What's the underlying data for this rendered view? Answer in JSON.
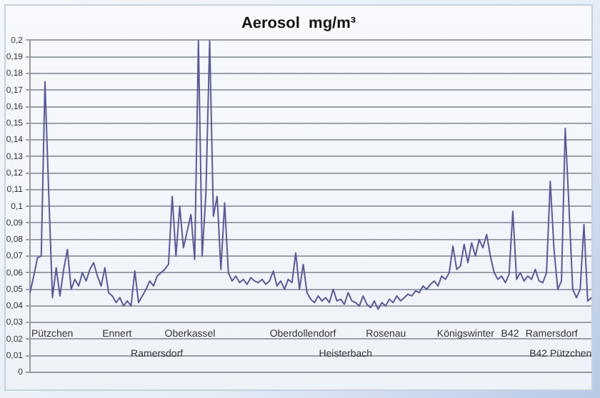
{
  "chart_data": {
    "type": "line",
    "title": "Aerosol  mg/m³",
    "categories": [
      null,
      null,
      null,
      null,
      null,
      null,
      null,
      null,
      null,
      null,
      null,
      null,
      null,
      null,
      null,
      null,
      null,
      null,
      null,
      null,
      null,
      null,
      null,
      null,
      null,
      null,
      null,
      null,
      null,
      null,
      null,
      null,
      null,
      null,
      null,
      null,
      null,
      null,
      null,
      null,
      null,
      null,
      null,
      null,
      null,
      null,
      null,
      null,
      null,
      null,
      null,
      null,
      null,
      null,
      null,
      null,
      null,
      null,
      null,
      null,
      null,
      null,
      null,
      null,
      null,
      null,
      null,
      null,
      null,
      null,
      null,
      null,
      null,
      null,
      null,
      null,
      null,
      null,
      null,
      null,
      null,
      null,
      null,
      null,
      null,
      null,
      null,
      null,
      null,
      null,
      null,
      null,
      null,
      null,
      null,
      null,
      null,
      null,
      null,
      null,
      null,
      null,
      null,
      null,
      null,
      null,
      null,
      null,
      null,
      null,
      null,
      null,
      null,
      null,
      null,
      null,
      null,
      null,
      null,
      null,
      null,
      null,
      null,
      null,
      null,
      null,
      null,
      null,
      null,
      null,
      null,
      null,
      null,
      null,
      null,
      null,
      null,
      null,
      null,
      null,
      null,
      null,
      null,
      null,
      null,
      null,
      null,
      null,
      null,
      null,
      null
    ],
    "series": [
      {
        "color": "#5a5a96",
        "values": [
          0.048,
          0.058,
          0.069,
          0.07,
          0.175,
          0.108,
          0.045,
          0.063,
          0.046,
          0.062,
          0.074,
          0.05,
          0.056,
          0.052,
          0.06,
          0.055,
          0.062,
          0.066,
          0.058,
          0.052,
          0.063,
          0.048,
          0.046,
          0.042,
          0.045,
          0.04,
          0.043,
          0.04,
          0.061,
          0.042,
          0.046,
          0.05,
          0.055,
          0.052,
          0.058,
          0.06,
          0.062,
          0.065,
          0.106,
          0.07,
          0.1,
          0.075,
          0.085,
          0.095,
          0.068,
          0.2,
          0.07,
          0.108,
          0.2,
          0.094,
          0.106,
          0.062,
          0.102,
          0.06,
          0.055,
          0.058,
          0.054,
          0.056,
          0.053,
          0.057,
          0.055,
          0.054,
          0.056,
          0.053,
          0.055,
          0.061,
          0.052,
          0.055,
          0.05,
          0.056,
          0.054,
          0.072,
          0.05,
          0.065,
          0.048,
          0.044,
          0.042,
          0.046,
          0.043,
          0.045,
          0.042,
          0.05,
          0.043,
          0.044,
          0.041,
          0.048,
          0.043,
          0.042,
          0.04,
          0.046,
          0.041,
          0.039,
          0.043,
          0.038,
          0.042,
          0.04,
          0.044,
          0.042,
          0.046,
          0.043,
          0.045,
          0.047,
          0.046,
          0.049,
          0.048,
          0.052,
          0.05,
          0.053,
          0.055,
          0.052,
          0.058,
          0.056,
          0.06,
          0.076,
          0.062,
          0.064,
          0.077,
          0.066,
          0.078,
          0.07,
          0.08,
          0.075,
          0.083,
          0.07,
          0.06,
          0.056,
          0.058,
          0.054,
          0.059,
          0.097,
          0.056,
          0.06,
          0.055,
          0.058,
          0.056,
          0.062,
          0.055,
          0.054,
          0.06,
          0.115,
          0.074,
          0.05,
          0.055,
          0.147,
          0.1,
          0.05,
          0.045,
          0.05,
          0.089,
          0.043,
          0.045
        ]
      }
    ],
    "ylim": [
      0,
      0.2
    ],
    "yticks": [
      0,
      {
        "value": 0.01,
        "label": "0,01"
      },
      {
        "value": 0.02,
        "label": "0,02"
      },
      {
        "value": 0.03,
        "label": "0,03"
      },
      {
        "value": 0.04,
        "label": "0,04"
      },
      {
        "value": 0.05,
        "label": "0,05"
      },
      {
        "value": 0.06,
        "label": "0,06"
      },
      {
        "value": 0.07,
        "label": "0,07"
      },
      {
        "value": 0.08,
        "label": "0,08"
      },
      {
        "value": 0.09,
        "label": "0,09"
      },
      {
        "value": 0.1,
        "label": "0,1"
      },
      {
        "value": 0.11,
        "label": "0,11"
      },
      {
        "value": 0.12,
        "label": "0,12"
      },
      {
        "value": 0.13,
        "label": "0,13"
      },
      {
        "value": 0.14,
        "label": "0,14"
      },
      {
        "value": 0.15,
        "label": "0,15"
      },
      {
        "value": 0.16,
        "label": "0,16"
      },
      {
        "value": 0.17,
        "label": "0,17"
      },
      {
        "value": 0.18,
        "label": "0,18"
      },
      {
        "value": 0.19,
        "label": "0,19"
      },
      {
        "value": 0.2,
        "label": "0,2"
      }
    ],
    "grid": "y",
    "legend": false,
    "marker": "none",
    "line_style": "solid",
    "tick_labels": "y",
    "annotations": [
      "Pützchen",
      "Ennert",
      "Oberkassel",
      "Oberdollendorf",
      "Rosenau",
      "Königswinter",
      "B42",
      "Ramersdorf",
      "Ramersdorf",
      "Heisterbach",
      "B42 Pützchen"
    ]
  }
}
